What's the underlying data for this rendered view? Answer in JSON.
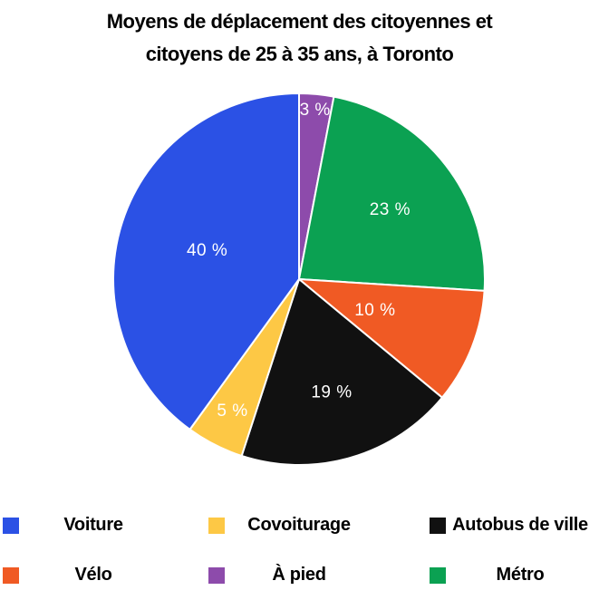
{
  "header": {
    "title_line1": "Moyens de déplacement des citoyennes et",
    "title_line2": "citoyens de 25 à 35 ans, à Toronto"
  },
  "chart_data": {
    "type": "pie",
    "title": "Moyens de déplacement des citoyennes et citoyens de 25 à 35 ans, à Toronto",
    "unit": "%",
    "start_angle_deg": 0,
    "direction": "clockwise",
    "slice_stroke_color": "#ffffff",
    "label_text_color": "#ffffff",
    "slices": [
      {
        "label": "À pied",
        "value": 3,
        "pct_label": "3 %",
        "color": "#8d4bab",
        "label_r_frac": 0.92
      },
      {
        "label": "Métro",
        "value": 23,
        "pct_label": "23 %",
        "color": "#0ba152",
        "label_r_frac": 0.62
      },
      {
        "label": "Vélo",
        "value": 10,
        "pct_label": "10 %",
        "color": "#f05a24",
        "label_r_frac": 0.44
      },
      {
        "label": "Autobus de ville",
        "value": 19,
        "pct_label": "19 %",
        "color": "#111111",
        "label_r_frac": 0.63
      },
      {
        "label": "Covoiturage",
        "value": 5,
        "pct_label": "5 %",
        "color": "#fdc845",
        "label_r_frac": 0.79
      },
      {
        "label": "Voiture",
        "value": 40,
        "pct_label": "40 %",
        "color": "#2b51e5",
        "label_r_frac": 0.52
      }
    ],
    "legend_position": "bottom"
  },
  "legend": {
    "items": [
      {
        "label": "Voiture",
        "color": "#2b51e5"
      },
      {
        "label": "Covoiturage",
        "color": "#fdc845"
      },
      {
        "label": "Autobus de ville",
        "color": "#111111"
      },
      {
        "label": "Vélo",
        "color": "#f05a24"
      },
      {
        "label": "À pied",
        "color": "#8d4bab"
      },
      {
        "label": "Métro",
        "color": "#0ba152"
      }
    ]
  }
}
